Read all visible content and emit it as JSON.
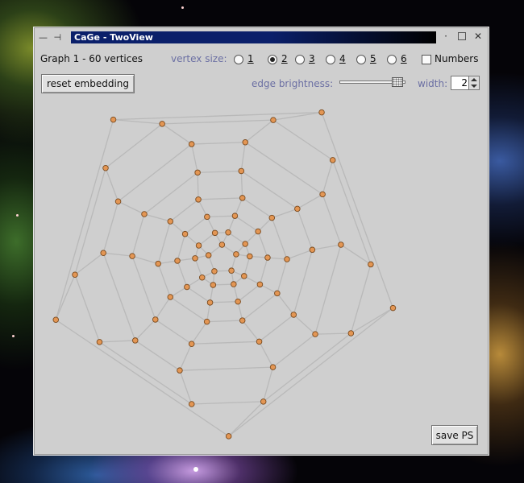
{
  "window": {
    "title": "CaGe - TwoView",
    "controls": {
      "menu_glyph": "—",
      "pin_glyph": "⊣",
      "minimize_glyph": "·",
      "close_glyph": "✕"
    }
  },
  "toolbar": {
    "graph_info": "Graph 1 - 60 vertices",
    "vertex_size_label": "vertex size:",
    "vertex_size_options": [
      "1",
      "2",
      "3",
      "4",
      "5",
      "6"
    ],
    "vertex_size_selected": "2",
    "numbers_label": "Numbers",
    "numbers_checked": false,
    "reset_button": "reset embedding",
    "edge_brightness_label": "edge brightness:",
    "edge_brightness_value": 0.95,
    "width_label": "width:",
    "width_value": "2"
  },
  "footer": {
    "save_button": "save PS"
  },
  "colors": {
    "vertex_fill": "#e39654",
    "vertex_stroke": "#7a4a1e",
    "edge": "#b9b9b9",
    "panel_bg": "#cfcfcf",
    "title_bg": "#0a1f6a"
  }
}
